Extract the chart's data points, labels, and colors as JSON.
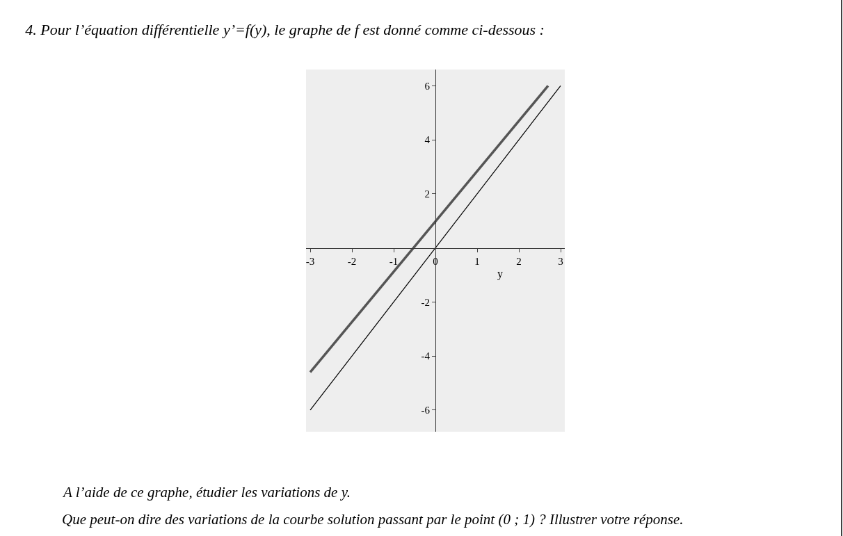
{
  "chart_data": {
    "type": "line",
    "title": "4. Pour l’équation différentielle y’=f(y), le graphe de f est donné comme ci-dessous :",
    "xlabel": "y",
    "series": [
      {
        "color": "#000000",
        "x": [
          -3,
          3
        ],
        "values": [
          -6,
          6
        ]
      },
      {
        "color": "#555555",
        "x": [
          -3,
          2.7
        ],
        "values": [
          -4.6,
          6
        ]
      }
    ],
    "xlim": [
      -3.1,
      3.1
    ],
    "ylim": [
      -6.8,
      6.6
    ],
    "xticks": [
      -3,
      -2,
      -1,
      0,
      1,
      2,
      3
    ],
    "yticks": [
      -6,
      -4,
      -2,
      2,
      4,
      6
    ],
    "grid": false,
    "marker": "none",
    "line_style": "solid",
    "annotations": [
      "A l’aide de ce graphe, étudier les variations de y.",
      "Que peut-on dire des variations de la courbe solution passant par le point (0 ; 1) ? Illustrer votre réponse."
    ]
  }
}
